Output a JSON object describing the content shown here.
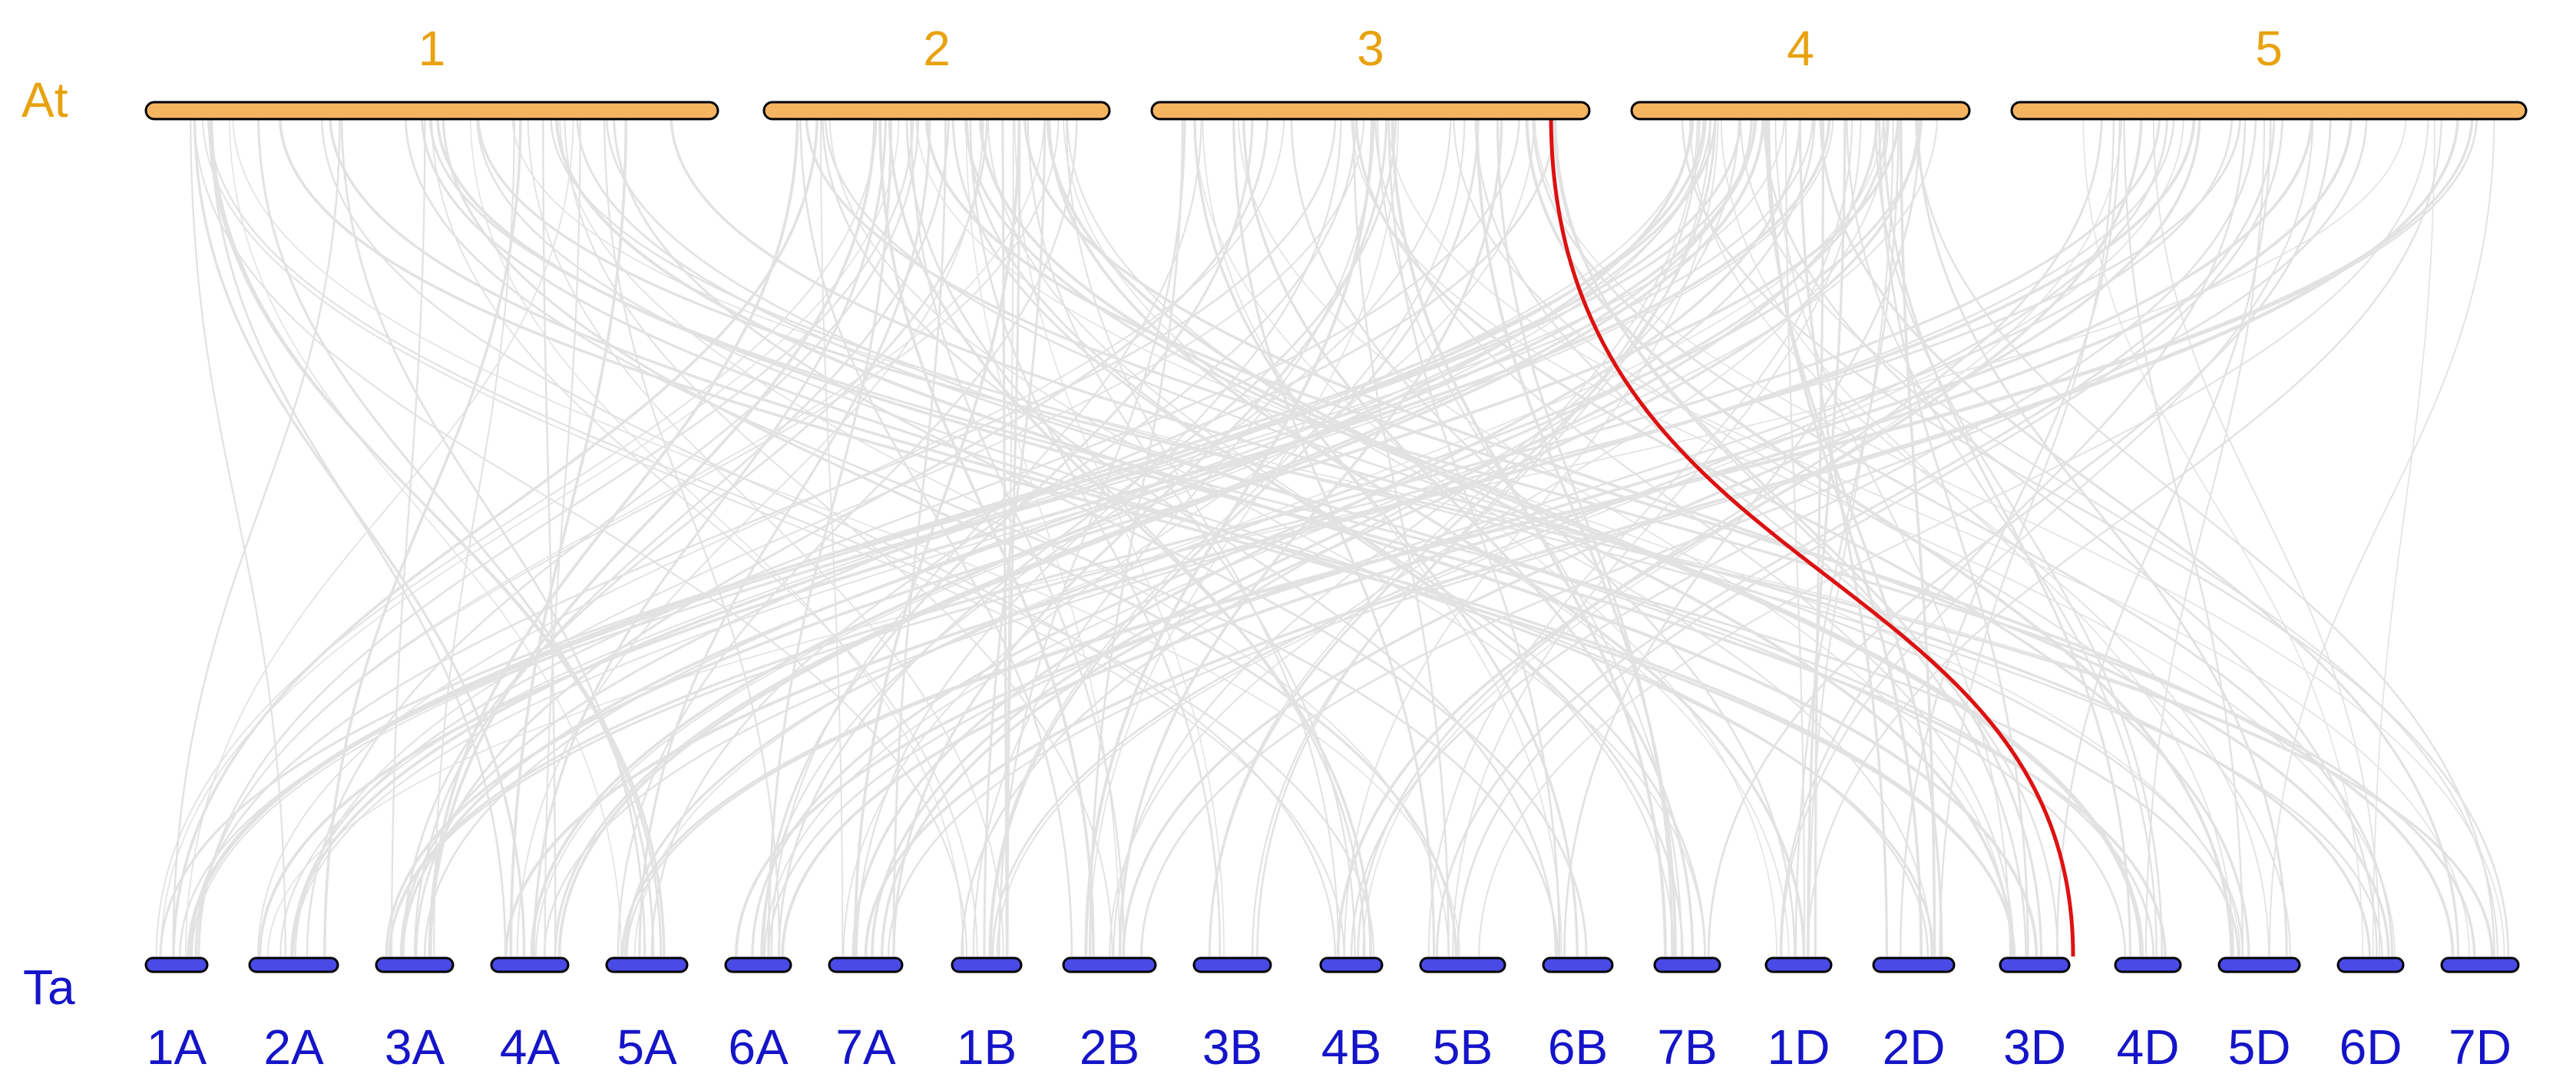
{
  "species": {
    "top": {
      "label": "At",
      "color": "#E8A20E"
    },
    "bottom": {
      "label": "Ta",
      "color": "#1414C8"
    }
  },
  "top_chromosomes": [
    {
      "name": "1"
    },
    {
      "name": "2"
    },
    {
      "name": "3"
    },
    {
      "name": "4"
    },
    {
      "name": "5"
    }
  ],
  "bottom_chromosomes": [
    {
      "name": "1A"
    },
    {
      "name": "2A"
    },
    {
      "name": "3A"
    },
    {
      "name": "4A"
    },
    {
      "name": "5A"
    },
    {
      "name": "6A"
    },
    {
      "name": "7A"
    },
    {
      "name": "1B"
    },
    {
      "name": "2B"
    },
    {
      "name": "3B"
    },
    {
      "name": "4B"
    },
    {
      "name": "5B"
    },
    {
      "name": "6B"
    },
    {
      "name": "7B"
    },
    {
      "name": "1D"
    },
    {
      "name": "2D"
    },
    {
      "name": "3D"
    },
    {
      "name": "4D"
    },
    {
      "name": "5D"
    },
    {
      "name": "6D"
    },
    {
      "name": "7D"
    }
  ],
  "colors": {
    "top_fill": "#F5B560",
    "bottom_fill": "#4A4AE6",
    "outline": "#000000",
    "background_link": "#E2E2E2",
    "highlight_link": "#DD1111"
  },
  "highlight_link": {
    "from_chromosome": "3",
    "to_chromosome": "3D"
  }
}
